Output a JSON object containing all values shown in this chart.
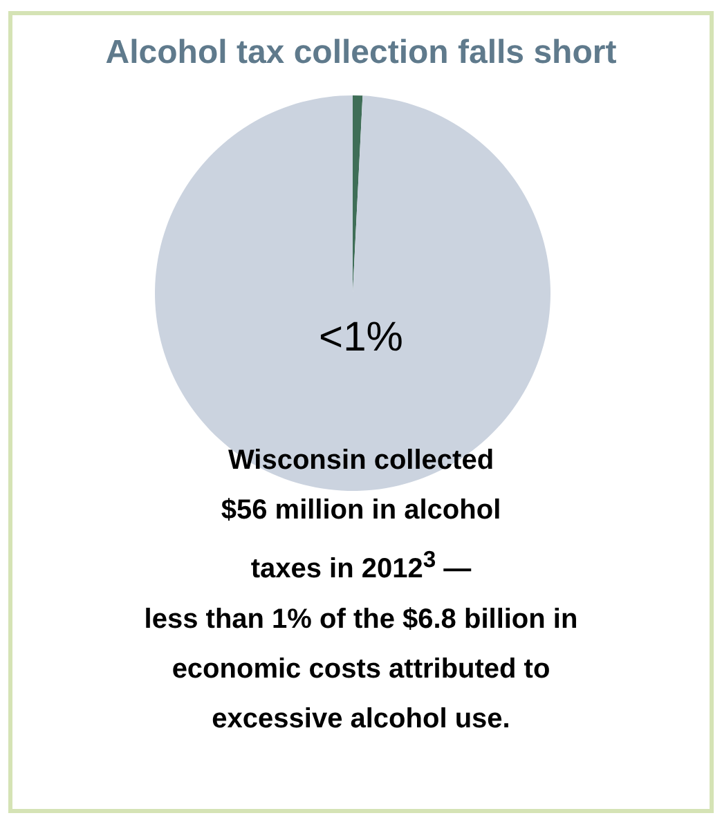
{
  "chart_data": {
    "type": "pie",
    "title": "Alcohol tax collection falls short",
    "categories": [
      null,
      null
    ],
    "values": [
      0.8,
      99.2
    ],
    "colors": [
      "#3f6e57",
      "#cbd3df"
    ],
    "annotations": [
      "<1%",
      "Wisconsin collected\n$56 million in alcohol\ntaxes in 2012$^{3}$ —\nless than 1% of the $6.8 billion in\neconomic costs attributed to\nexcessive alcohol use."
    ]
  }
}
